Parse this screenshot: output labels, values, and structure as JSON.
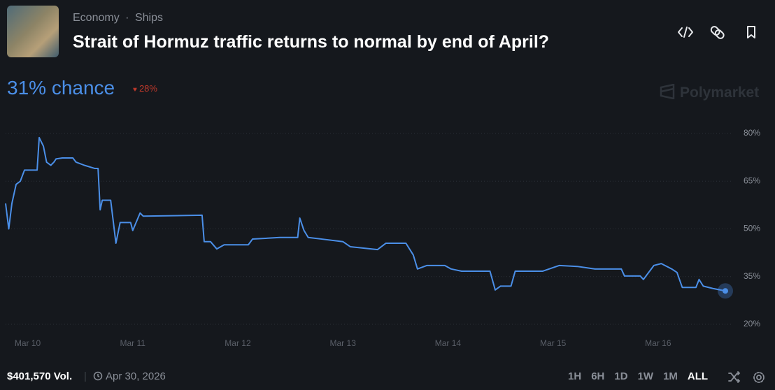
{
  "header": {
    "categories": [
      "Economy",
      "Ships"
    ],
    "title": "Strait of Hormuz traffic returns to normal by end of April?",
    "chance": "31% chance",
    "change": "28%",
    "brand": "Polymarket"
  },
  "chart_data": {
    "type": "line",
    "x": [
      9.79,
      9.82,
      9.85,
      9.89,
      9.93,
      9.97,
      10.09,
      10.11,
      10.15,
      10.18,
      10.22,
      10.25,
      10.27,
      10.33,
      10.43,
      10.46,
      10.54,
      10.64,
      10.67,
      10.69,
      10.71,
      10.79,
      10.84,
      10.88,
      10.98,
      11.0,
      11.07,
      11.1,
      11.66,
      11.68,
      11.74,
      11.8,
      11.87,
      12.1,
      12.14,
      12.4,
      12.57,
      12.59,
      12.63,
      12.67,
      12.8,
      13.0,
      13.07,
      13.33,
      13.41,
      13.6,
      13.67,
      13.71,
      13.8,
      13.97,
      14.03,
      14.13,
      14.4,
      14.45,
      14.5,
      14.6,
      14.64,
      14.9,
      15.06,
      15.23,
      15.4,
      15.65,
      15.68,
      15.83,
      15.86,
      15.96,
      16.03,
      16.13,
      16.18,
      16.23,
      16.36,
      16.39,
      16.43,
      16.53,
      16.64
    ],
    "series": [
      {
        "color": "#4b8fe8",
        "values": [
          58,
          50,
          58,
          64,
          65,
          68.5,
          68.5,
          78.7,
          76,
          71,
          70,
          71,
          72,
          72.3,
          72.3,
          71,
          70,
          69,
          69,
          56,
          59,
          59,
          45.5,
          52,
          52,
          49.5,
          55,
          54,
          54.3,
          46,
          46,
          43.7,
          45,
          45,
          46.8,
          47.3,
          47.3,
          53.4,
          49.5,
          47.3,
          46.8,
          46,
          44.4,
          43.5,
          45.5,
          45.5,
          41.8,
          37.4,
          38.5,
          38.5,
          37.4,
          36.7,
          36.7,
          30.8,
          32,
          32,
          36.7,
          36.7,
          38.5,
          38.2,
          37.4,
          37.4,
          35.2,
          35.2,
          34.1,
          38.5,
          39.1,
          37.4,
          36.3,
          31.6,
          31.6,
          34.1,
          32,
          31.2,
          30.5
        ]
      }
    ],
    "xlim": [
      9.79,
      16.64
    ],
    "xticks": [
      {
        "value": 10,
        "label": "Mar 10"
      },
      {
        "value": 11,
        "label": "Mar 11"
      },
      {
        "value": 12,
        "label": "Mar 12"
      },
      {
        "value": 13,
        "label": "Mar 13"
      },
      {
        "value": 14,
        "label": "Mar 14"
      },
      {
        "value": 15,
        "label": "Mar 15"
      },
      {
        "value": 16,
        "label": "Mar 16"
      }
    ],
    "ylim": [
      20,
      80
    ],
    "yticks": [
      {
        "value": 20,
        "label": "20%"
      },
      {
        "value": 35,
        "label": "35%"
      },
      {
        "value": 50,
        "label": "50%"
      },
      {
        "value": 65,
        "label": "65%"
      },
      {
        "value": 80,
        "label": "80%"
      }
    ],
    "grid": true
  },
  "footer": {
    "volume": "$401,570 Vol.",
    "end_date": "Apr 30, 2026",
    "ranges": [
      "1H",
      "6H",
      "1D",
      "1W",
      "1M",
      "ALL"
    ]
  }
}
